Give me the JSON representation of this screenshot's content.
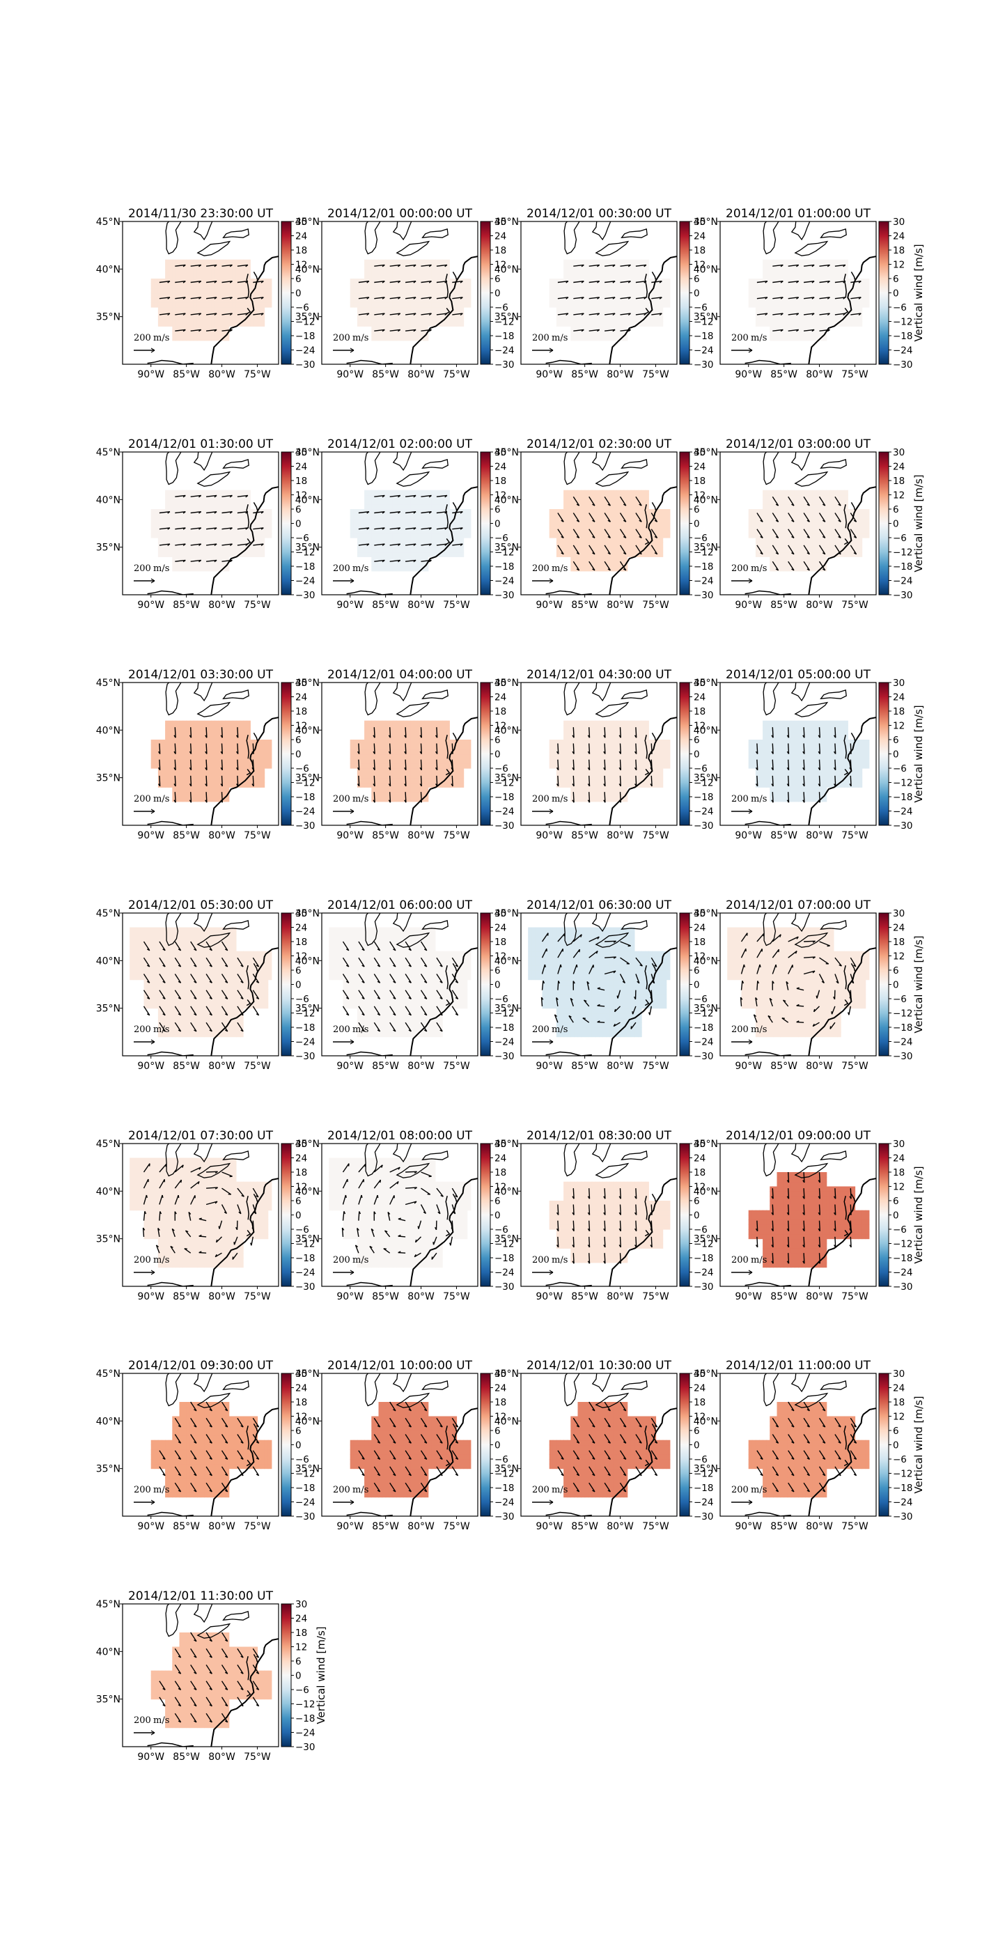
{
  "figure": {
    "colorbar_label": "Vertical wind [m/s]",
    "colorbar_ticks": [
      "30",
      "24",
      "18",
      "12",
      "6",
      "0",
      "−6",
      "−12",
      "−18",
      "−24",
      "−30"
    ],
    "colorbar_range": [
      -30,
      30
    ],
    "colormap": "RdBu_r",
    "colors": {
      "low": "#053061",
      "zero": "#f7f7f7",
      "high": "#67001f"
    },
    "lat_ticks": [
      "45°N",
      "40°N",
      "35°N"
    ],
    "lon_ticks": [
      "90°W",
      "85°W",
      "80°W",
      "75°W"
    ],
    "reference_vector_label": "200",
    "reference_vector_unit": "m/s"
  },
  "panels": [
    {
      "title": "2014/11/30 23:30:00 UT",
      "vertical_wind": 4,
      "vector_direction": "east",
      "coverage": "compact"
    },
    {
      "title": "2014/12/01 00:00:00 UT",
      "vertical_wind": 2,
      "vector_direction": "east",
      "coverage": "compact"
    },
    {
      "title": "2014/12/01 00:30:00 UT",
      "vertical_wind": 0.5,
      "vector_direction": "east",
      "coverage": "compact"
    },
    {
      "title": "2014/12/01 01:00:00 UT",
      "vertical_wind": 0.5,
      "vector_direction": "east",
      "coverage": "compact"
    },
    {
      "title": "2014/12/01 01:30:00 UT",
      "vertical_wind": 1,
      "vector_direction": "east",
      "coverage": "compact"
    },
    {
      "title": "2014/12/01 02:00:00 UT",
      "vertical_wind": -2,
      "vector_direction": "east",
      "coverage": "compact"
    },
    {
      "title": "2014/12/01 02:30:00 UT",
      "vertical_wind": 6,
      "vector_direction": "southeast",
      "coverage": "compact"
    },
    {
      "title": "2014/12/01 03:00:00 UT",
      "vertical_wind": 2,
      "vector_direction": "southeast",
      "coverage": "compact"
    },
    {
      "title": "2014/12/01 03:30:00 UT",
      "vertical_wind": 9,
      "vector_direction": "south",
      "coverage": "compact"
    },
    {
      "title": "2014/12/01 04:00:00 UT",
      "vertical_wind": 8,
      "vector_direction": "south",
      "coverage": "compact"
    },
    {
      "title": "2014/12/01 04:30:00 UT",
      "vertical_wind": 3,
      "vector_direction": "south",
      "coverage": "compact"
    },
    {
      "title": "2014/12/01 05:00:00 UT",
      "vertical_wind": -4,
      "vector_direction": "south",
      "coverage": "compact"
    },
    {
      "title": "2014/12/01 05:30:00 UT",
      "vertical_wind": 3,
      "vector_direction": "southeast",
      "coverage": "wide"
    },
    {
      "title": "2014/12/01 06:00:00 UT",
      "vertical_wind": 0.5,
      "vector_direction": "southeast",
      "coverage": "wide"
    },
    {
      "title": "2014/12/01 06:30:00 UT",
      "vertical_wind": -5,
      "vector_direction": "rotating",
      "coverage": "wide"
    },
    {
      "title": "2014/12/01 07:00:00 UT",
      "vertical_wind": 3,
      "vector_direction": "rotating",
      "coverage": "wide"
    },
    {
      "title": "2014/12/01 07:30:00 UT",
      "vertical_wind": 3,
      "vector_direction": "rotating",
      "coverage": "wide"
    },
    {
      "title": "2014/12/01 08:00:00 UT",
      "vertical_wind": 0.5,
      "vector_direction": "rotating",
      "coverage": "wide"
    },
    {
      "title": "2014/12/01 08:30:00 UT",
      "vertical_wind": 4,
      "vector_direction": "south",
      "coverage": "compact"
    },
    {
      "title": "2014/12/01 09:00:00 UT",
      "vertical_wind": 16,
      "vector_direction": "south",
      "coverage": "north"
    },
    {
      "title": "2014/12/01 09:30:00 UT",
      "vertical_wind": 12,
      "vector_direction": "southeast",
      "coverage": "north"
    },
    {
      "title": "2014/12/01 10:00:00 UT",
      "vertical_wind": 15,
      "vector_direction": "southeast",
      "coverage": "north"
    },
    {
      "title": "2014/12/01 10:30:00 UT",
      "vertical_wind": 15,
      "vector_direction": "southeast",
      "coverage": "north"
    },
    {
      "title": "2014/12/01 11:00:00 UT",
      "vertical_wind": 13,
      "vector_direction": "southeast",
      "coverage": "north"
    },
    {
      "title": "2014/12/01 11:30:00 UT",
      "vertical_wind": 9,
      "vector_direction": "southeast",
      "coverage": "north"
    }
  ]
}
